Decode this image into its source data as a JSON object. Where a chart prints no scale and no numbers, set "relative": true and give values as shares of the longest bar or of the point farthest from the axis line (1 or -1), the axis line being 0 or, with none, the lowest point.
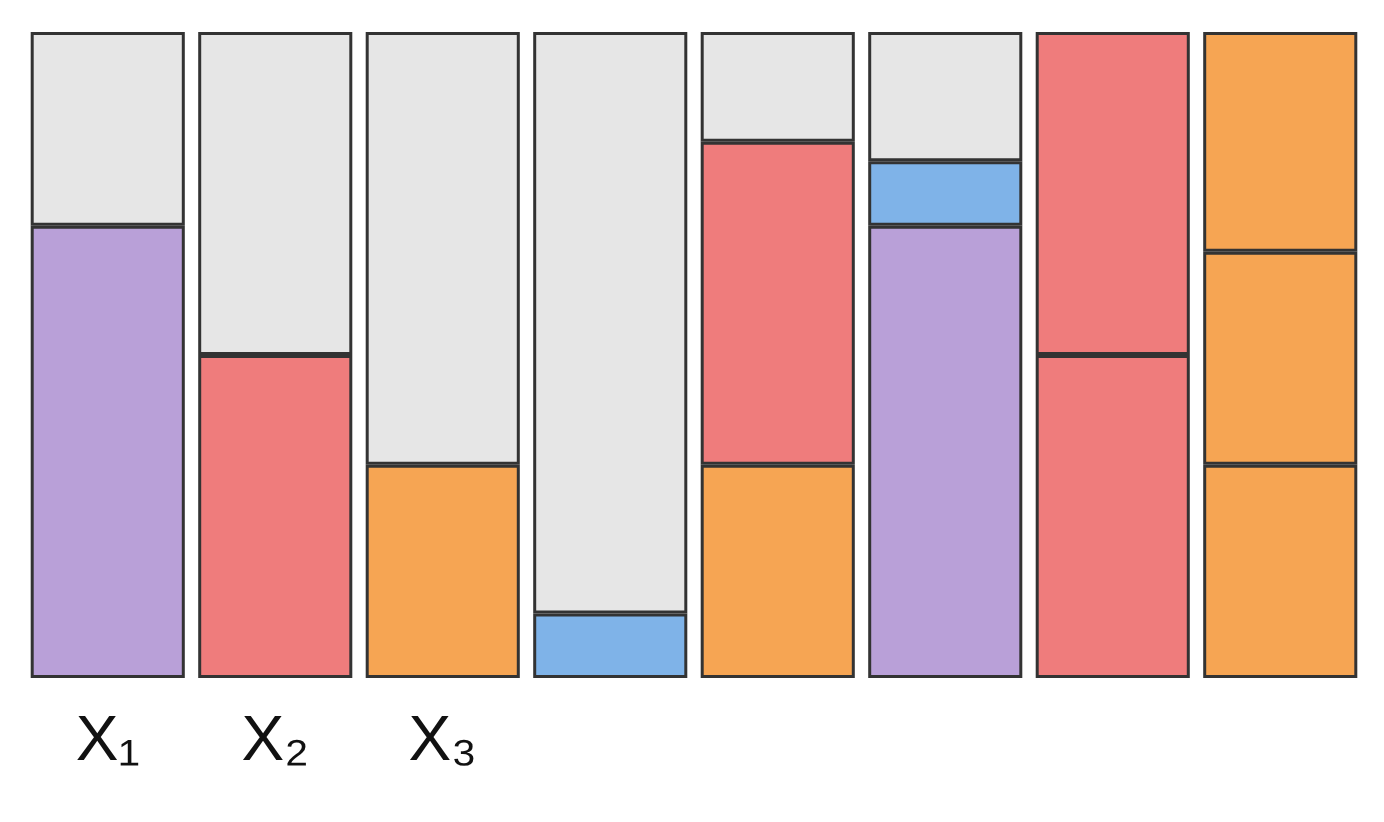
{
  "chart_data": {
    "type": "bar",
    "stacked": true,
    "relative": true,
    "categories": [
      "X₁",
      "X₂",
      "X₃",
      null,
      null,
      null,
      null,
      null
    ],
    "series": [
      {
        "colors": [
          "#b9a0d8",
          "#ef7c7c",
          "#f6a553",
          "#7fb3e8",
          "#f6a553",
          "#b9a0d8",
          "#ef7c7c",
          "#f6a553"
        ],
        "values": [
          0.7,
          0.5,
          0.33,
          0.1,
          0.33,
          0.7,
          0.5,
          0.33
        ]
      },
      {
        "colors": [
          null,
          null,
          null,
          null,
          "#ef7c7c",
          "#7fb3e8",
          "#ef7c7c",
          "#f6a553"
        ],
        "values": [
          null,
          null,
          null,
          null,
          0.5,
          0.1,
          0.5,
          0.33
        ]
      },
      {
        "colors": [
          null,
          null,
          null,
          null,
          null,
          null,
          null,
          "#f6a553"
        ],
        "values": [
          null,
          null,
          null,
          null,
          null,
          null,
          null,
          0.34
        ]
      },
      {
        "color": "#e6e6e6",
        "values": [
          0.3,
          0.5,
          0.67,
          0.9,
          0.17,
          0.2,
          null,
          null
        ]
      }
    ]
  }
}
